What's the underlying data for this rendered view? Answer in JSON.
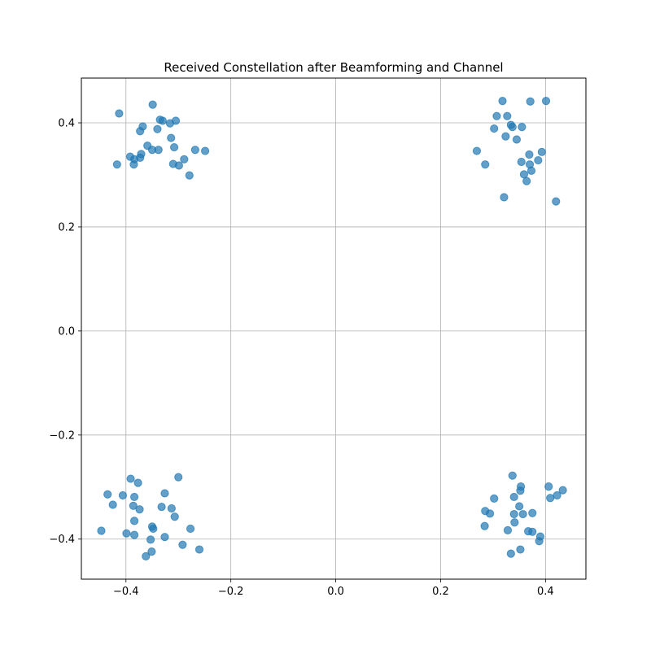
{
  "chart_data": {
    "type": "scatter",
    "title": "Received Constellation after Beamforming and Channel",
    "xlabel": "",
    "ylabel": "",
    "xlim": [
      -0.485,
      0.477
    ],
    "ylim": [
      -0.477,
      0.486
    ],
    "xticks": [
      -0.4,
      -0.2,
      0.0,
      0.2,
      0.4
    ],
    "yticks": [
      -0.4,
      -0.2,
      0.0,
      0.2,
      0.4
    ],
    "xtick_labels": [
      "−0.4",
      "−0.2",
      "0.0",
      "0.2",
      "0.4"
    ],
    "ytick_labels": [
      "−0.4",
      "−0.2",
      "0.0",
      "0.2",
      "0.4"
    ],
    "grid": true,
    "marker_color": "#1f77b4",
    "marker_alpha": 0.7,
    "series": [
      {
        "points": [
          [
            -0.413,
            0.418
          ],
          [
            -0.349,
            0.435
          ],
          [
            -0.335,
            0.406
          ],
          [
            -0.33,
            0.404
          ],
          [
            -0.305,
            0.404
          ],
          [
            -0.368,
            0.393
          ],
          [
            -0.316,
            0.399
          ],
          [
            -0.34,
            0.388
          ],
          [
            -0.373,
            0.384
          ],
          [
            -0.314,
            0.371
          ],
          [
            -0.359,
            0.356
          ],
          [
            -0.35,
            0.348
          ],
          [
            -0.338,
            0.348
          ],
          [
            -0.308,
            0.353
          ],
          [
            -0.268,
            0.348
          ],
          [
            -0.249,
            0.346
          ],
          [
            -0.392,
            0.335
          ],
          [
            -0.371,
            0.34
          ],
          [
            -0.384,
            0.33
          ],
          [
            -0.373,
            0.333
          ],
          [
            -0.289,
            0.33
          ],
          [
            -0.31,
            0.321
          ],
          [
            -0.299,
            0.318
          ],
          [
            -0.385,
            0.32
          ],
          [
            -0.417,
            0.32
          ],
          [
            -0.279,
            0.299
          ],
          [
            0.318,
            0.442
          ],
          [
            0.371,
            0.441
          ],
          [
            0.401,
            0.442
          ],
          [
            0.307,
            0.413
          ],
          [
            0.327,
            0.413
          ],
          [
            0.334,
            0.396
          ],
          [
            0.337,
            0.392
          ],
          [
            0.302,
            0.389
          ],
          [
            0.355,
            0.392
          ],
          [
            0.324,
            0.374
          ],
          [
            0.345,
            0.368
          ],
          [
            0.269,
            0.346
          ],
          [
            0.369,
            0.339
          ],
          [
            0.393,
            0.344
          ],
          [
            0.285,
            0.32
          ],
          [
            0.354,
            0.325
          ],
          [
            0.386,
            0.328
          ],
          [
            0.37,
            0.32
          ],
          [
            0.373,
            0.308
          ],
          [
            0.359,
            0.301
          ],
          [
            0.364,
            0.288
          ],
          [
            0.321,
            0.257
          ],
          [
            0.42,
            0.249
          ],
          [
            -0.391,
            -0.284
          ],
          [
            -0.3,
            -0.281
          ],
          [
            -0.377,
            -0.292
          ],
          [
            -0.435,
            -0.314
          ],
          [
            -0.406,
            -0.316
          ],
          [
            -0.384,
            -0.319
          ],
          [
            -0.326,
            -0.312
          ],
          [
            -0.425,
            -0.334
          ],
          [
            -0.386,
            -0.336
          ],
          [
            -0.374,
            -0.343
          ],
          [
            -0.332,
            -0.338
          ],
          [
            -0.313,
            -0.341
          ],
          [
            -0.307,
            -0.357
          ],
          [
            -0.384,
            -0.365
          ],
          [
            -0.35,
            -0.376
          ],
          [
            -0.348,
            -0.38
          ],
          [
            -0.277,
            -0.38
          ],
          [
            -0.447,
            -0.384
          ],
          [
            -0.399,
            -0.389
          ],
          [
            -0.384,
            -0.392
          ],
          [
            -0.326,
            -0.396
          ],
          [
            -0.353,
            -0.401
          ],
          [
            -0.292,
            -0.411
          ],
          [
            -0.26,
            -0.42
          ],
          [
            -0.351,
            -0.424
          ],
          [
            -0.362,
            -0.433
          ],
          [
            0.337,
            -0.278
          ],
          [
            0.353,
            -0.299
          ],
          [
            0.406,
            -0.299
          ],
          [
            0.433,
            -0.306
          ],
          [
            0.352,
            -0.307
          ],
          [
            0.422,
            -0.316
          ],
          [
            0.409,
            -0.321
          ],
          [
            0.302,
            -0.322
          ],
          [
            0.34,
            -0.319
          ],
          [
            0.35,
            -0.337
          ],
          [
            0.285,
            -0.346
          ],
          [
            0.294,
            -0.351
          ],
          [
            0.34,
            -0.352
          ],
          [
            0.357,
            -0.352
          ],
          [
            0.375,
            -0.35
          ],
          [
            0.341,
            -0.368
          ],
          [
            0.284,
            -0.375
          ],
          [
            0.328,
            -0.383
          ],
          [
            0.367,
            -0.385
          ],
          [
            0.375,
            -0.386
          ],
          [
            0.39,
            -0.395
          ],
          [
            0.388,
            -0.404
          ],
          [
            0.352,
            -0.42
          ],
          [
            0.334,
            -0.428
          ]
        ]
      }
    ]
  }
}
